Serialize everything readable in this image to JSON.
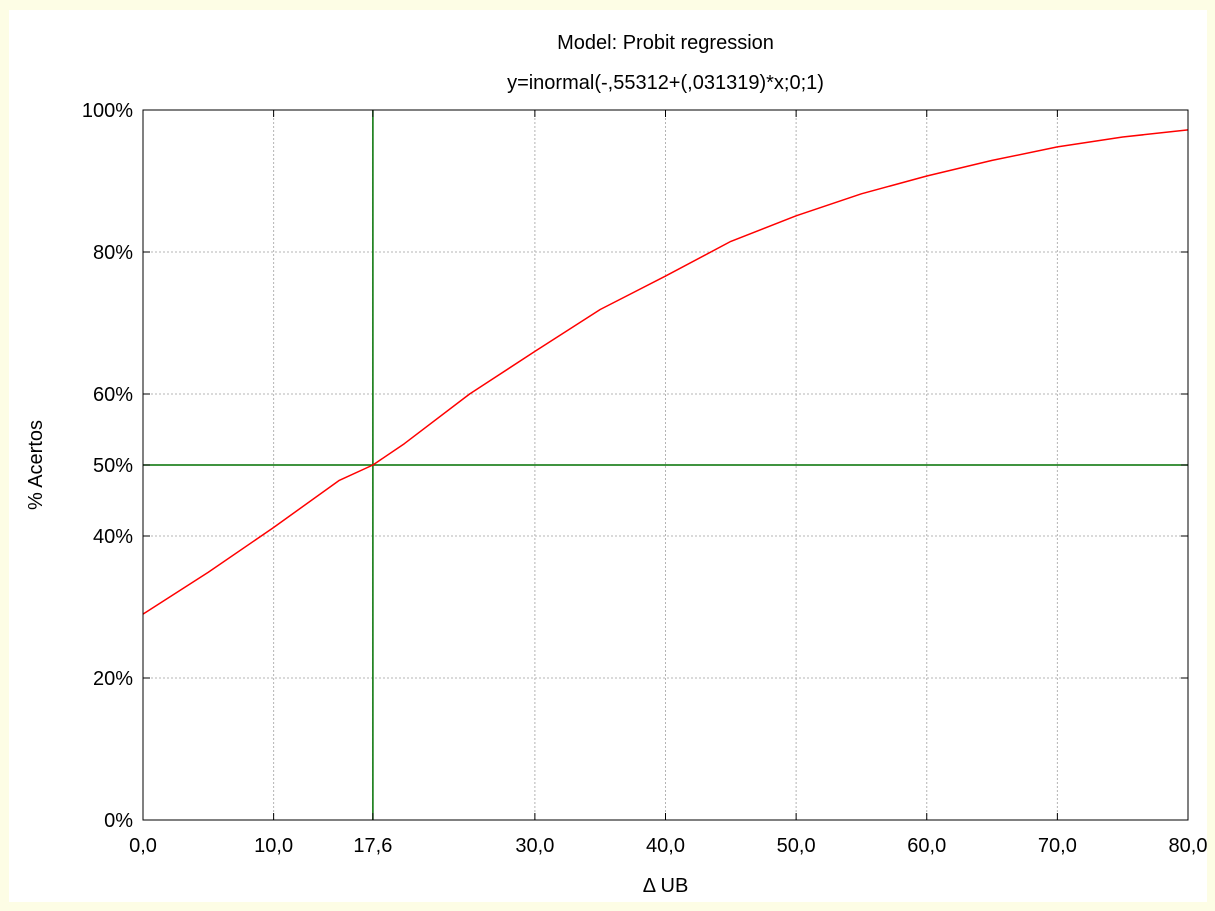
{
  "chart_data": {
    "type": "line",
    "title": "Model: Probit regression",
    "subtitle": "y=inormal(-,55312+(,031319)*x;0;1)",
    "xlabel": "Δ UB",
    "ylabel": "% Acertos",
    "xlim": [
      0,
      80
    ],
    "ylim": [
      0,
      100
    ],
    "x_ticks": [
      0,
      10,
      17.6,
      30,
      40,
      50,
      60,
      70,
      80
    ],
    "x_tick_labels": [
      "0,0",
      "10,0",
      "17,6",
      "30,0",
      "40,0",
      "50,0",
      "60,0",
      "70,0",
      "80,0"
    ],
    "y_ticks": [
      0,
      20,
      40,
      50,
      60,
      80,
      100
    ],
    "y_tick_labels": [
      "0%",
      "20%",
      "40%",
      "50%",
      "60%",
      "80%",
      "100%"
    ],
    "grid": true,
    "model": {
      "intercept": -0.55312,
      "slope": 0.031319
    },
    "series": [
      {
        "color": "#ff0000",
        "x": [
          0,
          5,
          10,
          15,
          17.6,
          20,
          25,
          30,
          35,
          40,
          45,
          50,
          55,
          60,
          65,
          70,
          75,
          80
        ],
        "y": [
          29.0,
          34.9,
          41.2,
          47.8,
          50.0,
          53.0,
          60.0,
          66.0,
          71.9,
          76.6,
          81.5,
          85.1,
          88.2,
          90.7,
          92.9,
          94.8,
          96.2,
          97.2
        ]
      }
    ],
    "reference_lines": [
      {
        "orientation": "vertical",
        "value": 17.6,
        "color": "#007000"
      },
      {
        "orientation": "horizontal",
        "value": 50,
        "color": "#007000"
      }
    ]
  }
}
